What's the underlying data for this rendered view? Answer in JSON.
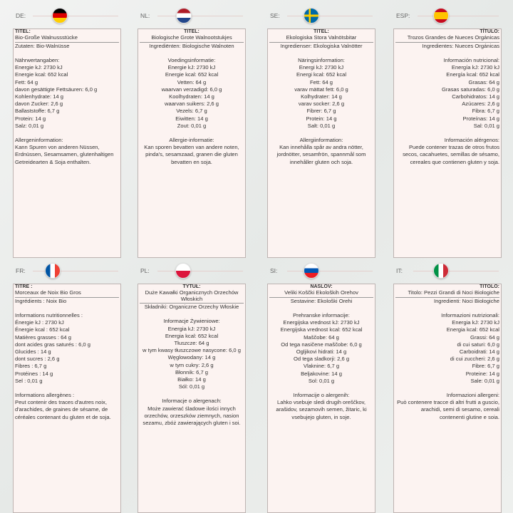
{
  "panels": [
    {
      "code": "DE:",
      "flag": "germany",
      "align": "left",
      "title_label": "TITEL:",
      "title": "Bio-Große Walnussstücke",
      "ingredients": "Zutaten: Bio-Walnüsse",
      "nutrition_heading": "Nährwertangaben:",
      "nutrition": [
        "Energie kJ: 2730 kJ",
        "Energie kcal: 652 kcal",
        "Fett: 64 g",
        "davon gesättigte Fettsäuren: 6,0 g",
        "Kohlenhydrate: 14 g",
        "davon Zucker: 2,6 g",
        "Ballaststoffe: 6,7 g",
        "Protein: 14 g",
        "Salz: 0,01 g"
      ],
      "allergen_heading": "Allergeninformation:",
      "allergen_text": "Kann Spuren von anderen Nüssen, Erdnüssen, Sesamsamen, glutenhaltigen Getreidearten & Soja enthalten."
    },
    {
      "code": "NL:",
      "flag": "netherlands",
      "align": "center",
      "title_label": "TITEL:",
      "title": "Biologische Grote Walnootstukjes",
      "ingredients": "Ingrediënten: Biologische Walnoten",
      "nutrition_heading": "Voedingsinformatie:",
      "nutrition": [
        "Energie kJ: 2730 kJ",
        "Energie kcal: 652 kcal",
        "Vetten: 64 g",
        "waarvan verzadigd: 6,0 g",
        "Koolhydraten: 14 g",
        "waarvan suikers: 2,6 g",
        "Vezels: 6,7 g",
        "Eiwitten: 14 g",
        "Zout: 0,01 g"
      ],
      "allergen_heading": "Allergie-informatie:",
      "allergen_text": "Kan sporen bevatten van andere noten, pinda's, sesamzaad, granen die gluten bevatten en soja."
    },
    {
      "code": "SE:",
      "flag": "sweden",
      "align": "center",
      "title_label": "TITEL:",
      "title": "Ekologiska Stora Valnötsbitar",
      "ingredients": "Ingredienser: Ekologiska Valnötter",
      "nutrition_heading": "Näringsinformation:",
      "nutrition": [
        "Energi kJ: 2730 kJ",
        "Energi kcal: 652 kcal",
        "Fett: 64 g",
        "varav mättat fett: 6,0 g",
        "Kolhydrater: 14 g",
        "varav socker: 2,6 g",
        "Fibrer: 6,7 g",
        "Protein: 14 g",
        "Salt: 0,01 g"
      ],
      "allergen_heading": "Allergiinformation:",
      "allergen_text": "Kan innehålla spår av andra nötter, jordnötter, sesamfrön, spannmål som innehåller gluten och soja."
    },
    {
      "code": "ESP:",
      "flag": "spain",
      "align": "right",
      "title_label": "TÍTULO:",
      "title": "Trozos Grandes de Nueces Orgánicas",
      "ingredients": "Ingredientes: Nueces Orgánicas",
      "nutrition_heading": "Información nutricional:",
      "nutrition": [
        "Energía kJ: 2730 kJ",
        "Energía kcal: 652 kcal",
        "Grasas: 64 g",
        "Grasas saturadas: 6,0 g",
        "Carbohidratos: 14 g",
        "Azúcares: 2,6 g",
        "Fibra: 6,7 g",
        "Proteínas: 14 g",
        "Sal: 0,01 g"
      ],
      "allergen_heading": "Información alérgenos:",
      "allergen_text": "Puede contener trazas de otros frutos secos, cacahuetes, semillas de sésamo, cereales que contienen gluten y soja."
    },
    {
      "code": "FR:",
      "flag": "france",
      "align": "left",
      "title_label": "TITRE :",
      "title": "Morceaux de Noix Bio Gros",
      "ingredients": "Ingrédients : Noix Bio",
      "nutrition_heading": "Informations nutritionnelles :",
      "nutrition": [
        "Énergie kJ : 2730 kJ",
        "Énergie kcal : 652 kcal",
        "Matières grasses : 64 g",
        "dont acides gras saturés : 6,0 g",
        "Glucides : 14 g",
        "dont sucres : 2,6 g",
        "Fibres : 6,7 g",
        "Protéines : 14 g",
        "Sel : 0,01 g"
      ],
      "allergen_heading": "Informations allergènes :",
      "allergen_text": "Peut contenir des traces d'autres noix, d'arachides, de graines de sésame, de céréales contenant du gluten et de soja."
    },
    {
      "code": "PL:",
      "flag": "poland",
      "align": "center",
      "title_label": "TYTUŁ:",
      "title": "Duże Kawałki Organicznych Orzechów Włoskich",
      "ingredients": "Składniki: Organiczne Orzechy Włoskie",
      "nutrition_heading": "Informacje Żywieniowe:",
      "nutrition": [
        "Energia kJ: 2730 kJ",
        "Energia kcal: 652 kcal",
        "Tłuszcze: 64 g",
        "w tym kwasy tłuszczowe nasycone: 6,0 g",
        "Węglowodany: 14 g",
        "w tym cukry: 2,6 g",
        "Błonnik: 6,7 g",
        "Białko: 14 g",
        "Sól: 0,01 g"
      ],
      "allergen_heading": "Informacje o alergenach:",
      "allergen_text": "Może zawierać śladowe ilości innych orzechów, orzeszków ziemnych, nasion sezamu, zbóż zawierających gluten i soi."
    },
    {
      "code": "SI:",
      "flag": "slovenia",
      "align": "center",
      "title_label": "NASLOV:",
      "title": "Veliki Koščki Ekoloških Orehov",
      "ingredients": "Sestavine: Ekološki Orehi",
      "nutrition_heading": "Prehranske informacije:",
      "nutrition": [
        "Energijska vrednost kJ: 2730 kJ",
        "Energijska vrednost kcal: 652 kcal",
        "Maščobe: 64 g",
        "Od tega nasičene maščobe: 6,0 g",
        "Ogljikovi hidrati: 14 g",
        "Od tega sladkorji: 2,6 g",
        "Vlaknine: 6,7 g",
        "Beljakovine: 14 g",
        "Sol: 0,01 g"
      ],
      "allergen_heading": "Informacije o alergenih:",
      "allergen_text": "Lahko vsebuje sledi drugih oreščkov, arašidov, sezamovih semen, žitaric, ki vsebujejo gluten, in soje."
    },
    {
      "code": "IT:",
      "flag": "italy",
      "align": "right",
      "title_label": "TITOLO:",
      "title": "Titolo: Pezzi Grandi di Noci Biologiche",
      "ingredients": "Ingredienti: Noci Biologiche",
      "nutrition_heading": "Informazioni nutrizionali:",
      "nutrition": [
        "Energia kJ: 2730 kJ",
        "Energia kcal: 652 kcal",
        "Grassi: 64 g",
        "di cui saturi: 6,0 g",
        "Carboidrati: 14 g",
        "di cui zuccheri: 2,6 g",
        "Fibre: 6,7 g",
        "Proteine: 14 g",
        "Sale: 0,01 g"
      ],
      "allergen_heading": "Informazioni allergeni:",
      "allergen_text": "Può contenere tracce di altri frutti a guscio, arachidi, semi di sesamo, cereali contenenti glutine e soia."
    }
  ]
}
